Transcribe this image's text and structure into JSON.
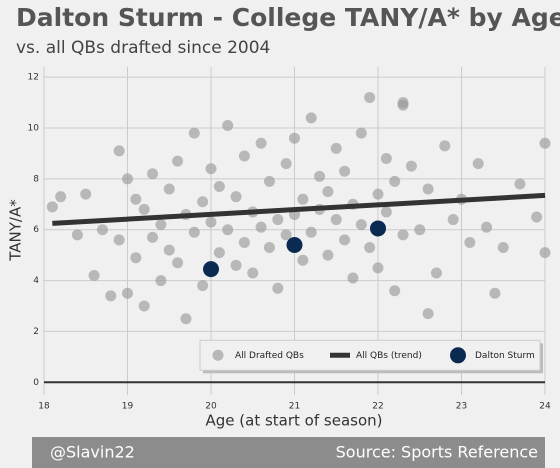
{
  "chart_data": {
    "type": "scatter",
    "title": "Dalton Sturm - College TANY/A* by Age",
    "subtitle": "vs. all QBs drafted since 2004",
    "x_label": "Age (at start of season)",
    "y_label": "TANY/A*",
    "xlim": [
      18,
      24
    ],
    "ylim": [
      -0.5,
      12.4
    ],
    "xticks": [
      18,
      19,
      20,
      21,
      22,
      23,
      24
    ],
    "yticks": [
      0,
      2,
      4,
      6,
      8,
      10,
      12
    ],
    "grid": true,
    "legend": "lower right",
    "series": [
      {
        "name": "All Drafted QBs",
        "color": "#9a9a9a",
        "mark": "dot",
        "x": [
          18.1,
          18.2,
          18.4,
          18.5,
          18.6,
          18.7,
          18.8,
          18.9,
          18.9,
          19.0,
          19.0,
          19.1,
          19.1,
          19.2,
          19.2,
          19.3,
          19.3,
          19.4,
          19.4,
          19.5,
          19.5,
          19.6,
          19.6,
          19.7,
          19.7,
          19.8,
          19.8,
          19.9,
          19.9,
          20.0,
          20.0,
          20.1,
          20.1,
          20.2,
          20.2,
          20.3,
          20.3,
          20.4,
          20.4,
          20.5,
          20.5,
          20.6,
          20.6,
          20.7,
          20.7,
          20.8,
          20.8,
          20.9,
          20.9,
          21.0,
          21.0,
          21.1,
          21.1,
          21.2,
          21.2,
          21.3,
          21.3,
          21.4,
          21.4,
          21.5,
          21.5,
          21.6,
          21.6,
          21.7,
          21.7,
          21.8,
          21.8,
          21.9,
          21.9,
          22.0,
          22.0,
          22.1,
          22.1,
          22.2,
          22.2,
          22.3,
          22.3,
          22.4,
          22.5,
          22.6,
          22.7,
          22.8,
          22.9,
          23.0,
          23.1,
          23.2,
          23.3,
          23.5,
          23.7,
          23.9,
          24.0,
          24.0,
          23.4,
          22.6,
          22.3
        ],
        "values": [
          6.9,
          7.3,
          5.8,
          7.4,
          4.2,
          6.0,
          3.4,
          9.1,
          5.6,
          8.0,
          3.5,
          7.2,
          4.9,
          6.8,
          3.0,
          8.2,
          5.7,
          6.2,
          4.0,
          7.6,
          5.2,
          8.7,
          4.7,
          6.6,
          2.5,
          9.8,
          5.9,
          7.1,
          3.8,
          8.4,
          6.3,
          7.7,
          5.1,
          10.1,
          6.0,
          7.3,
          4.6,
          8.9,
          5.5,
          6.7,
          4.3,
          9.4,
          6.1,
          7.9,
          5.3,
          6.4,
          3.7,
          8.6,
          5.8,
          9.6,
          6.6,
          7.2,
          4.8,
          10.4,
          5.9,
          8.1,
          6.8,
          7.5,
          5.0,
          9.2,
          6.4,
          8.3,
          5.6,
          7.0,
          4.1,
          9.8,
          6.2,
          11.2,
          5.3,
          7.4,
          4.5,
          8.8,
          6.7,
          7.9,
          3.6,
          10.9,
          5.8,
          8.5,
          6.0,
          7.6,
          4.3,
          9.3,
          6.4,
          7.2,
          5.5,
          8.6,
          6.1,
          5.3,
          7.8,
          6.5,
          9.4,
          5.1,
          3.5,
          2.7,
          11.0
        ]
      },
      {
        "name": "All QBs (trend)",
        "color": "#333333",
        "mark": "line",
        "x": [
          18.1,
          24
        ],
        "values": [
          6.25,
          7.35
        ]
      },
      {
        "name": "Dalton Sturm",
        "color": "#0b2a52",
        "mark": "big-dot",
        "x": [
          20,
          21,
          22
        ],
        "values": [
          4.45,
          5.4,
          6.05
        ]
      }
    ]
  },
  "footer": {
    "left": "@Slavin22",
    "right": "Source: Sports Reference"
  }
}
